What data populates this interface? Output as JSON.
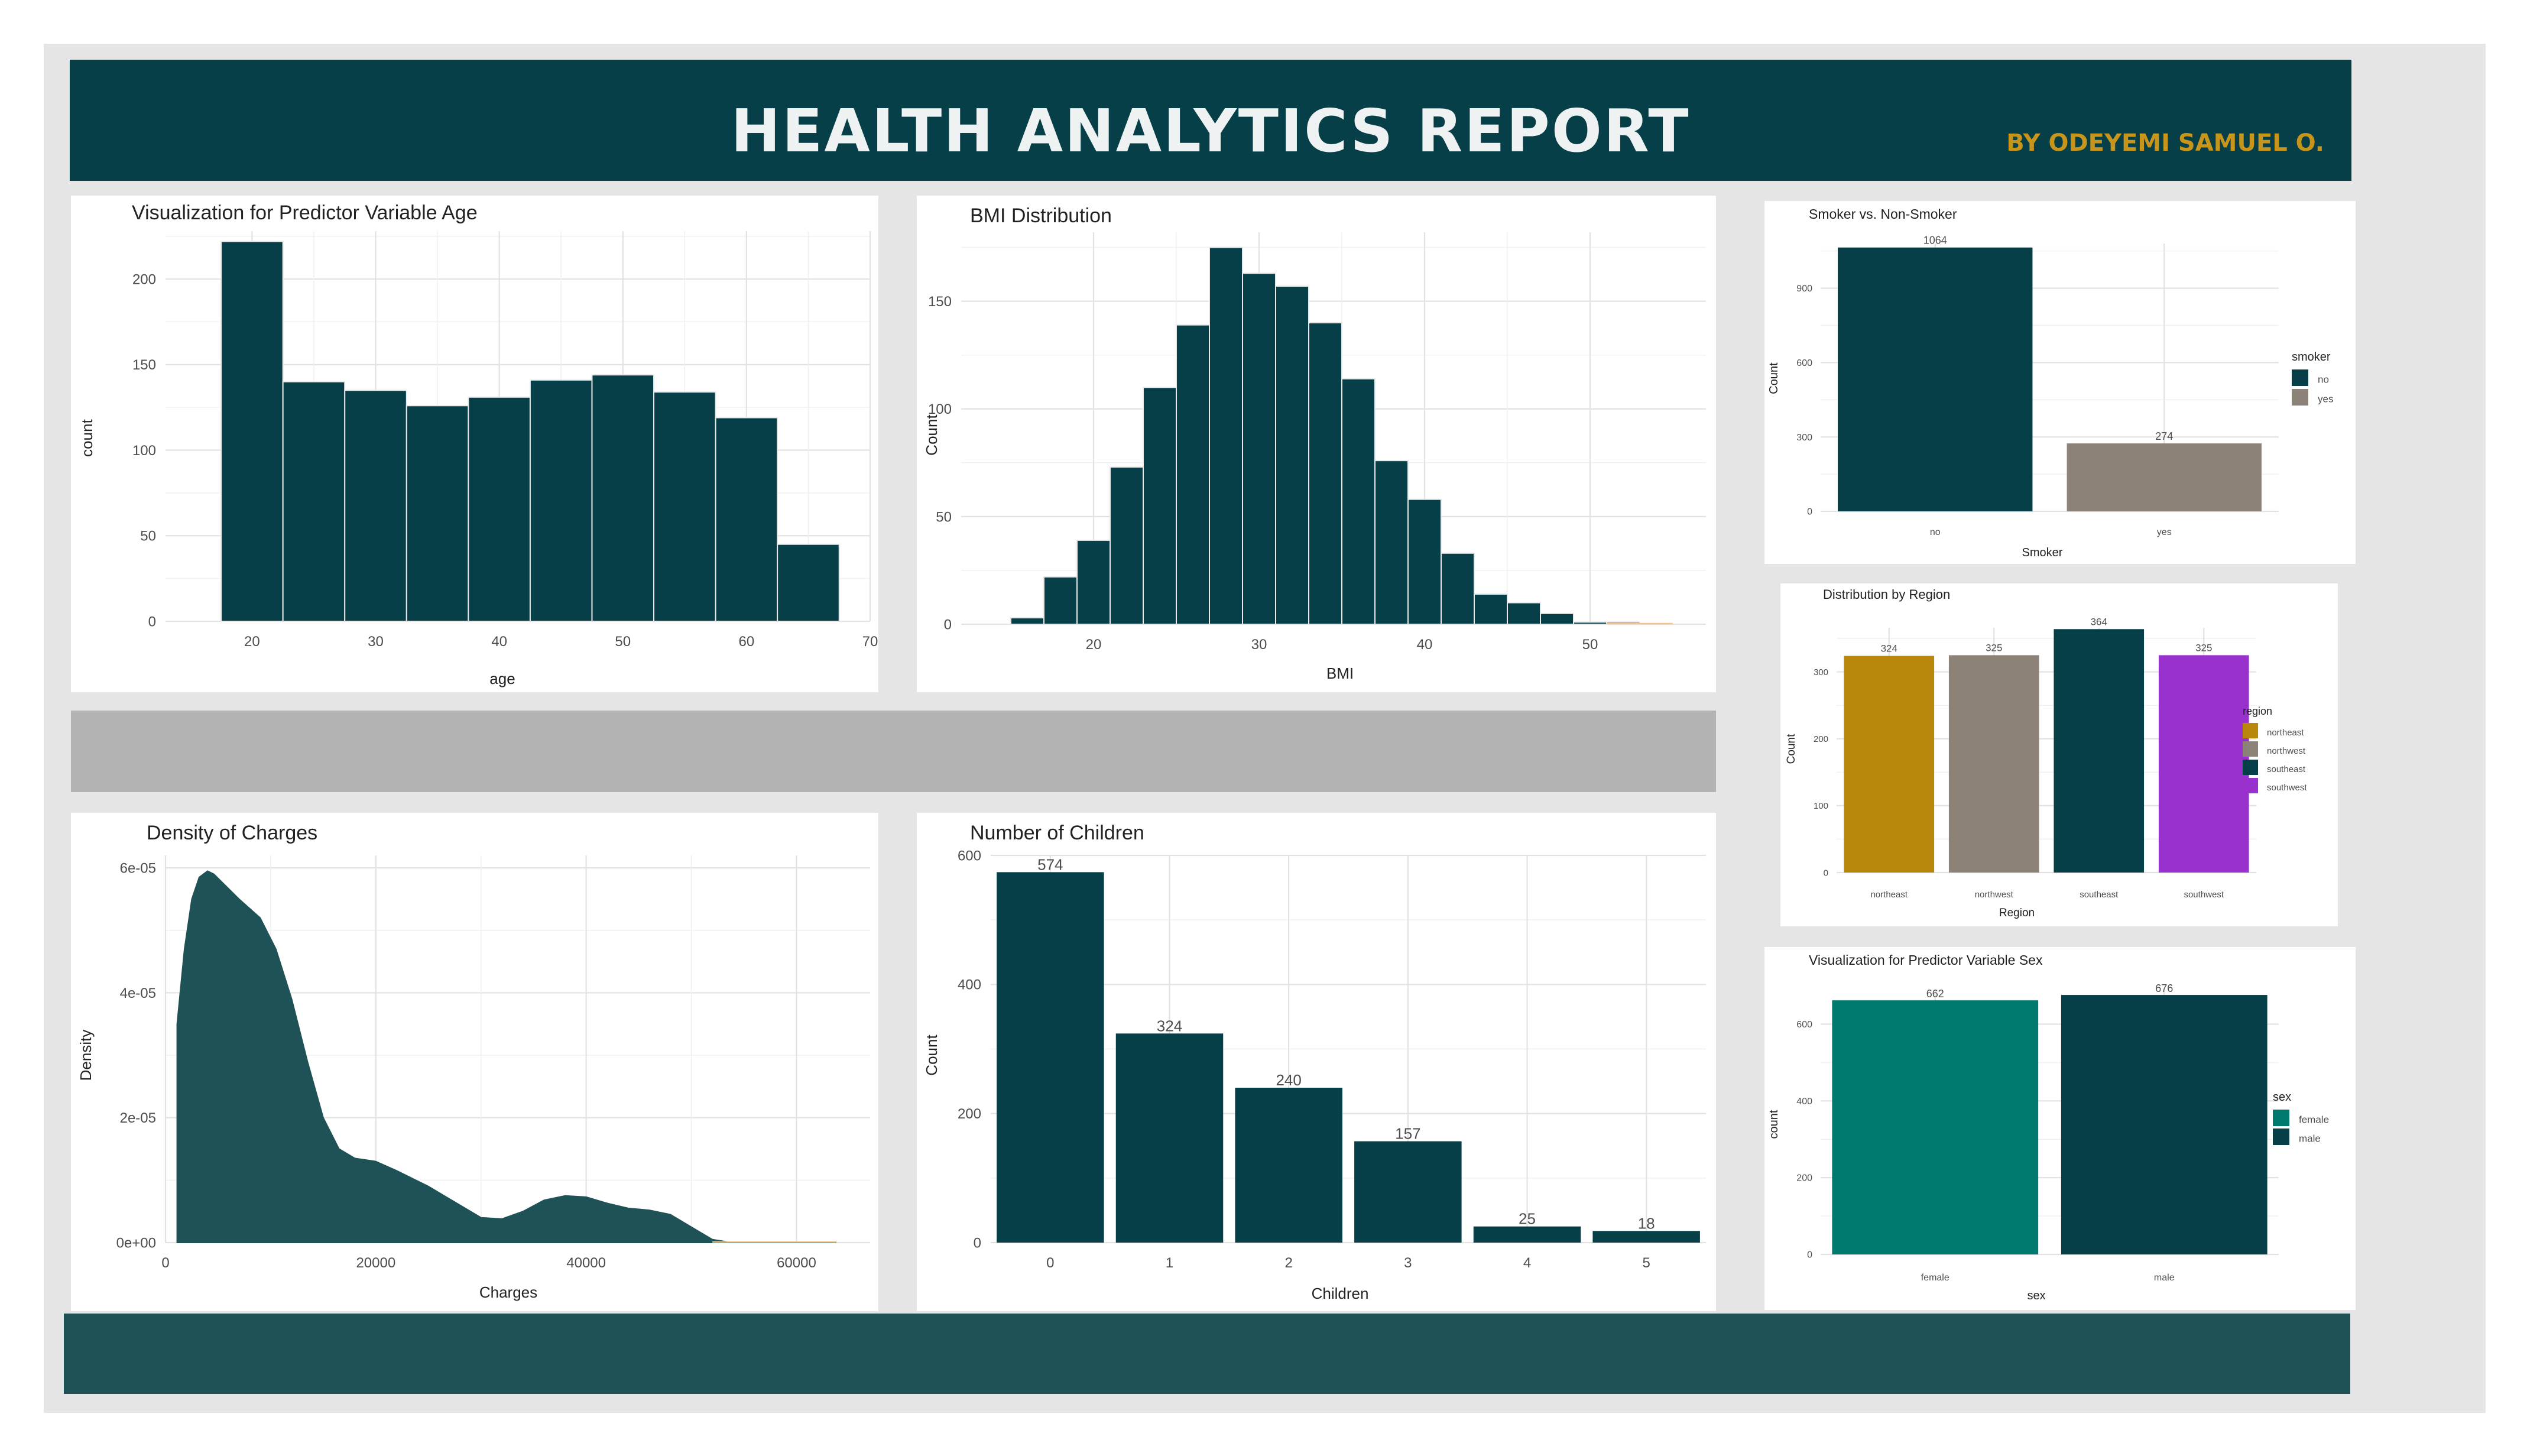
{
  "header": {
    "title": "HEALTH ANALYTICS REPORT",
    "byline": "BY ODEYEMI SAMUEL O."
  },
  "colors": {
    "primary": "#063f47",
    "gray": "#8c8278",
    "gold": "#b8860b",
    "purple": "#9932cc",
    "teal": "#007a6e",
    "density": "#1f5256",
    "band_gray": "#b3b3b3",
    "footer": "#1f5256"
  },
  "chart_data": [
    {
      "id": "age",
      "type": "bar",
      "title": "Visualization for Predictor Variable Age",
      "xlabel": "age",
      "ylabel": "count",
      "bin_edges": [
        17.5,
        22.5,
        27.5,
        32.5,
        37.5,
        42.5,
        47.5,
        52.5,
        57.5,
        62.5,
        67.5
      ],
      "values": [
        222,
        140,
        135,
        126,
        131,
        141,
        144,
        134,
        119,
        45
      ],
      "xlim": [
        13,
        70
      ],
      "ylim": [
        0,
        228
      ],
      "xticks": [
        20,
        30,
        40,
        50,
        60,
        70
      ],
      "yticks": [
        0,
        50,
        100,
        150,
        200
      ],
      "grid": true,
      "color": "#063f47"
    },
    {
      "id": "bmi",
      "type": "bar",
      "title": "BMI Distribution",
      "xlabel": "BMI",
      "ylabel": "Count",
      "bin_edges": [
        15,
        17,
        19,
        21,
        23,
        25,
        27,
        29,
        31,
        33,
        35,
        37,
        39,
        41,
        43,
        45,
        47,
        49,
        51,
        53,
        55
      ],
      "values": [
        3,
        22,
        39,
        73,
        110,
        139,
        175,
        163,
        157,
        140,
        114,
        76,
        58,
        33,
        14,
        10,
        5,
        1,
        1,
        0
      ],
      "xlim": [
        12,
        57
      ],
      "ylim": [
        0,
        182
      ],
      "xticks": [
        20,
        30,
        40,
        50
      ],
      "yticks": [
        0,
        50,
        100,
        150
      ],
      "grid": true,
      "color": "#063f47"
    },
    {
      "id": "smoker",
      "type": "bar",
      "title": "Smoker vs. Non-Smoker",
      "xlabel": "Smoker",
      "ylabel": "Count",
      "categories": [
        "no",
        "yes"
      ],
      "values": [
        1064,
        274
      ],
      "colors": [
        "#063f47",
        "#8c8278"
      ],
      "ylim": [
        0,
        1080
      ],
      "yticks": [
        0,
        300,
        600,
        900
      ],
      "legend": {
        "title": "smoker",
        "entries": [
          "no",
          "yes"
        ],
        "position": "right"
      },
      "grid": true
    },
    {
      "id": "region",
      "type": "bar",
      "title": "Distribution by Region",
      "xlabel": "Region",
      "ylabel": "Count",
      "categories": [
        "northeast",
        "northwest",
        "southeast",
        "southwest"
      ],
      "values": [
        324,
        325,
        364,
        325
      ],
      "colors": [
        "#b8860b",
        "#8c8278",
        "#063f47",
        "#9932cc"
      ],
      "ylim": [
        0,
        366
      ],
      "yticks": [
        0,
        100,
        200,
        300
      ],
      "legend": {
        "title": "region",
        "entries": [
          "northeast",
          "northwest",
          "southeast",
          "southwest"
        ],
        "position": "right"
      },
      "grid": true
    },
    {
      "id": "charges",
      "type": "area",
      "title": "Density of Charges",
      "xlabel": "Charges",
      "ylabel": "Density",
      "x": [
        1100,
        1800,
        2500,
        3200,
        4000,
        4600,
        5500,
        7000,
        9000,
        10500,
        12000,
        13500,
        15000,
        16500,
        18000,
        20000,
        22000,
        25000,
        28000,
        30000,
        32000,
        34000,
        36000,
        38000,
        40000,
        42000,
        44000,
        46000,
        48000,
        50000,
        52000,
        53500,
        55000,
        60000,
        63800
      ],
      "y": [
        3.5e-05,
        4.7e-05,
        5.5e-05,
        5.85e-05,
        5.95e-05,
        5.9e-05,
        5.75e-05,
        5.5e-05,
        5.2e-05,
        4.7e-05,
        3.9e-05,
        2.9e-05,
        2e-05,
        1.5e-05,
        1.35e-05,
        1.3e-05,
        1.15e-05,
        9e-06,
        6e-06,
        4e-06,
        3.8e-06,
        5e-06,
        6.8e-06,
        7.5e-06,
        7.3e-06,
        6.3e-06,
        5.5e-06,
        5.2e-06,
        4.5e-06,
        2.5e-06,
        5e-07,
        1e-07,
        0,
        0,
        0
      ],
      "xlim": [
        0,
        67000
      ],
      "ylim": [
        0,
        6.2e-05
      ],
      "xticks": [
        0,
        20000,
        40000,
        60000
      ],
      "ytick_values": [
        0,
        2e-05,
        4e-05,
        6e-05
      ],
      "ytick_labels": [
        "0e+00",
        "2e-05",
        "4e-05",
        "6e-05"
      ],
      "grid": true,
      "color": "#1f5256"
    },
    {
      "id": "children",
      "type": "bar",
      "title": "Number of Children",
      "xlabel": "Children",
      "ylabel": "Count",
      "categories": [
        "0",
        "1",
        "2",
        "3",
        "4",
        "5"
      ],
      "values": [
        574,
        324,
        240,
        157,
        25,
        18
      ],
      "ylim": [
        0,
        600
      ],
      "yticks": [
        0,
        200,
        400,
        600
      ],
      "grid": true,
      "color": "#063f47"
    },
    {
      "id": "sex",
      "type": "bar",
      "title": "Visualization for Predictor Variable Sex",
      "xlabel": "sex",
      "ylabel": "count",
      "categories": [
        "female",
        "male"
      ],
      "values": [
        662,
        676
      ],
      "colors": [
        "#007a6e",
        "#063f47"
      ],
      "ylim": [
        0,
        690
      ],
      "yticks": [
        0,
        200,
        400,
        600
      ],
      "legend": {
        "title": "sex",
        "entries": [
          "female",
          "male"
        ],
        "position": "right"
      },
      "grid": true
    }
  ]
}
